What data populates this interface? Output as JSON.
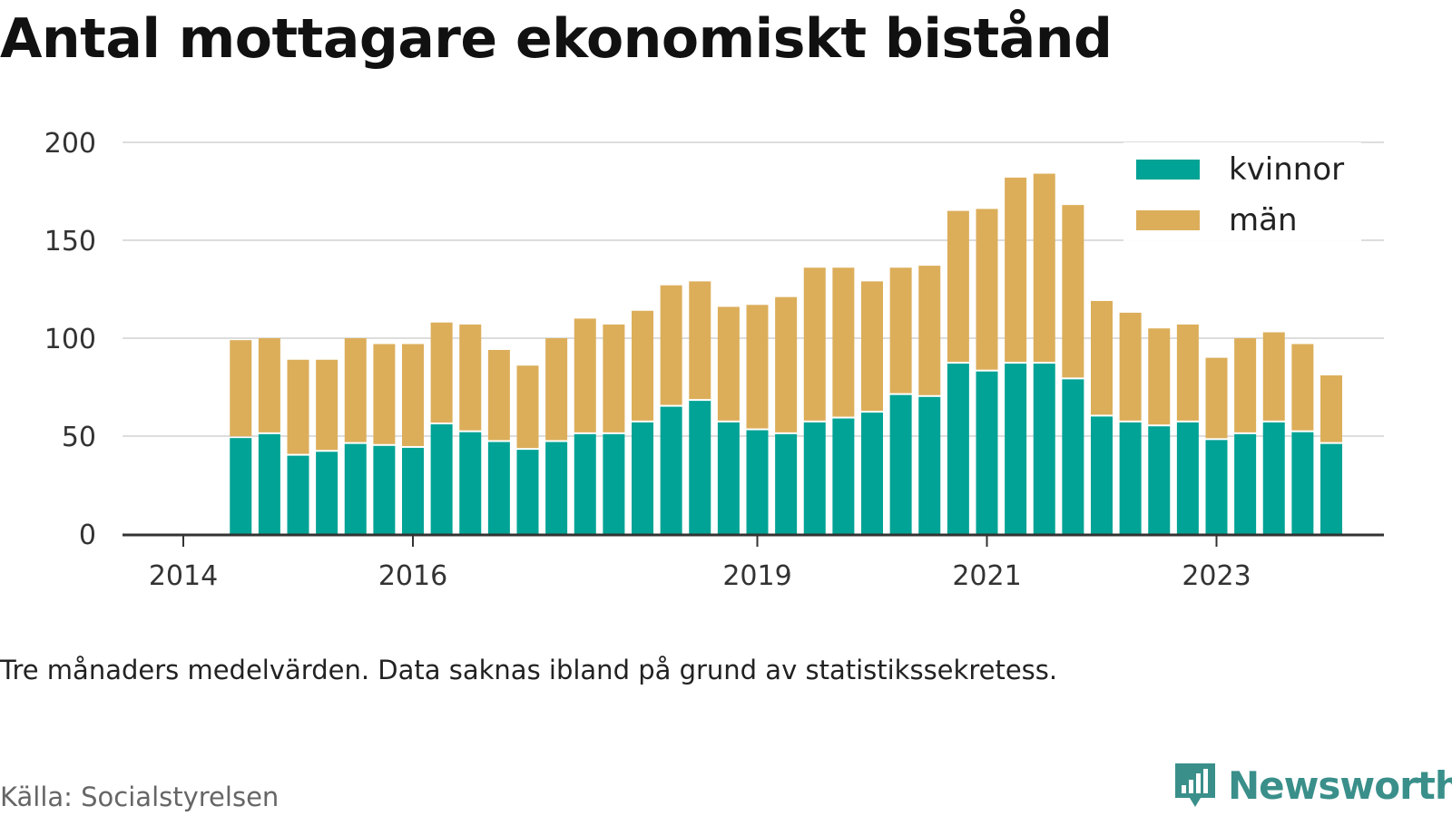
{
  "chart_data": {
    "type": "bar",
    "stacked": true,
    "title": "Antal mottagare ekonomiskt bistånd",
    "note": "Tre månaders medelvärden. Data saknas ibland på grund av statistikssekretess.",
    "source": "Källa: Socialstyrelsen",
    "brand": "Newsworthy",
    "ylim": [
      0,
      200
    ],
    "y_ticks": [
      "0",
      "50",
      "100",
      "150",
      "200"
    ],
    "x_ticks": [
      {
        "label": "2014",
        "date": "2014-01"
      },
      {
        "label": "2016",
        "date": "2016-01"
      },
      {
        "label": "2019",
        "date": "2019-01"
      },
      {
        "label": "2021",
        "date": "2021-01"
      },
      {
        "label": "2023",
        "date": "2023-01"
      }
    ],
    "legend_position": "top-right",
    "grid": true,
    "x": [
      "2014-07",
      "2014-10",
      "2015-01",
      "2015-04",
      "2015-07",
      "2015-10",
      "2016-01",
      "2016-04",
      "2016-07",
      "2016-10",
      "2017-01",
      "2017-04",
      "2017-07",
      "2017-10",
      "2018-01",
      "2018-04",
      "2018-07",
      "2018-10",
      "2019-01",
      "2019-04",
      "2019-07",
      "2019-10",
      "2020-01",
      "2020-04",
      "2020-07",
      "2020-10",
      "2021-01",
      "2021-04",
      "2021-07",
      "2021-10",
      "2022-01",
      "2022-04",
      "2022-07",
      "2022-10",
      "2023-01",
      "2023-04",
      "2023-07",
      "2023-10",
      "2024-01"
    ],
    "series": [
      {
        "name": "kvinnor",
        "color": "#00a395",
        "values": [
          49,
          51,
          40,
          42,
          46,
          45,
          44,
          56,
          52,
          47,
          43,
          47,
          51,
          51,
          57,
          65,
          68,
          57,
          53,
          51,
          57,
          59,
          62,
          71,
          70,
          87,
          83,
          87,
          87,
          79,
          60,
          57,
          55,
          57,
          48,
          51,
          57,
          52,
          46
        ]
      },
      {
        "name": "män",
        "color": "#dcae5a",
        "values": [
          50,
          49,
          49,
          47,
          54,
          52,
          53,
          52,
          55,
          47,
          43,
          53,
          59,
          56,
          57,
          62,
          61,
          59,
          64,
          70,
          79,
          77,
          67,
          65,
          67,
          78,
          83,
          95,
          97,
          89,
          59,
          56,
          50,
          50,
          42,
          49,
          46,
          45,
          35
        ]
      }
    ]
  }
}
